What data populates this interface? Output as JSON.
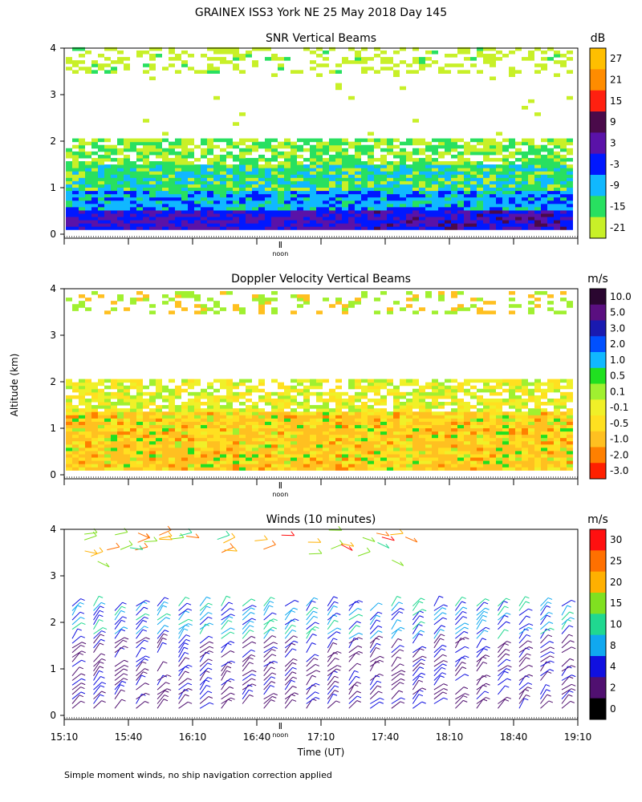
{
  "figure": {
    "title": "GRAINEX ISS3 York NE  25 May 2018 Day 145",
    "ylabel": "Altitude (km)",
    "xlabel": "Time (UT)",
    "footnote": "Simple moment winds, no ship navigation correction applied",
    "noon_label": "noon"
  },
  "chart_data": [
    {
      "type": "heatmap",
      "title": "SNR Vertical Beams",
      "ylim": [
        0,
        4
      ],
      "yticks": [
        "0",
        "1",
        "2",
        "3",
        "4"
      ],
      "colorbar": {
        "unit": "dB",
        "labels": [
          "27",
          "21",
          "15",
          "9",
          "3",
          "-3",
          "-9",
          "-15",
          "-21"
        ],
        "colors": [
          "#ffbf00",
          "#ff8c00",
          "#ff2010",
          "#4a0a4a",
          "#5a12a8",
          "#0018ff",
          "#10b8ff",
          "#28e060",
          "#c8f028"
        ]
      }
    },
    {
      "type": "heatmap",
      "title": "Doppler Velocity Vertical Beams",
      "ylim": [
        0,
        4
      ],
      "yticks": [
        "0",
        "1",
        "2",
        "3",
        "4"
      ],
      "colorbar": {
        "unit": "m/s",
        "labels": [
          "10.0",
          "5.0",
          "3.0",
          "2.0",
          "1.0",
          "0.5",
          "0.1",
          "-0.1",
          "-0.5",
          "-1.0",
          "-2.0",
          "-3.0"
        ],
        "colors": [
          "#2a0630",
          "#5a0f80",
          "#1a1ab0",
          "#0050ff",
          "#10b8ff",
          "#20e020",
          "#a0f030",
          "#f0f028",
          "#ffe020",
          "#ffc020",
          "#ff8000",
          "#ff2000"
        ]
      }
    },
    {
      "type": "scatter",
      "title": "Winds (10 minutes)",
      "ylim": [
        0,
        4
      ],
      "yticks": [
        "0",
        "1",
        "2",
        "3",
        "4"
      ],
      "xticks": [
        "15:10",
        "15:40",
        "16:10",
        "16:40",
        "17:10",
        "17:40",
        "18:10",
        "18:40",
        "19:10"
      ],
      "colorbar": {
        "unit": "m/s",
        "labels": [
          "30",
          "25",
          "20",
          "15",
          "10",
          "8",
          "4",
          "2",
          "0"
        ],
        "colors": [
          "#ff1010",
          "#ff7000",
          "#ffb000",
          "#80e020",
          "#20d890",
          "#10a8f0",
          "#1010e0",
          "#501070",
          "#000000"
        ]
      }
    }
  ]
}
